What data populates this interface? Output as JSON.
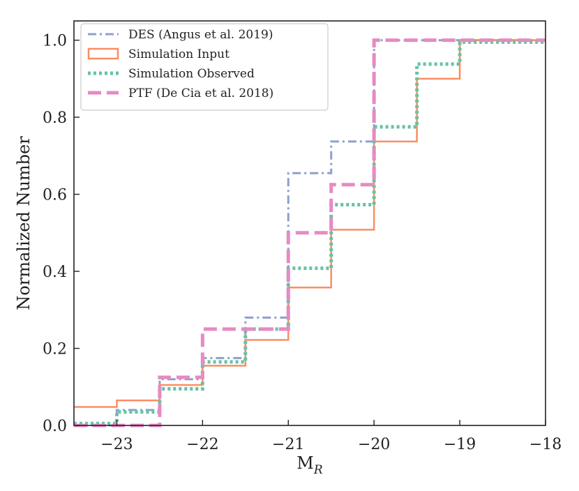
{
  "chart_data": {
    "type": "line",
    "step": "post",
    "title": "",
    "xlabel": "M",
    "xlabel_subscript": "R",
    "ylabel": "Normalized Number",
    "xlim": [
      -23.5,
      -18
    ],
    "ylim": [
      0,
      1.05
    ],
    "xticks": [
      -23,
      -22,
      -21,
      -20,
      -19,
      -18
    ],
    "xtick_labels": [
      "−23",
      "−22",
      "−21",
      "−20",
      "−19",
      "−18"
    ],
    "yticks": [
      0.0,
      0.2,
      0.4,
      0.6,
      0.8,
      1.0
    ],
    "ytick_labels": [
      "0.0",
      "0.2",
      "0.4",
      "0.6",
      "0.8",
      "1.0"
    ],
    "grid": false,
    "legend_location": "upper-left",
    "series": [
      {
        "name": "DES (Angus et al. 2019)",
        "color": "#8DA0CB",
        "style": "dashdot",
        "x": [
          -23.5,
          -23.0,
          -22.5,
          -22.0,
          -21.5,
          -21.0,
          -20.5,
          -20.0,
          -19.5,
          -19.0,
          -18.0
        ],
        "y": [
          0.0,
          0.04,
          0.12,
          0.175,
          0.28,
          0.655,
          0.737,
          1.0,
          1.0,
          1.0,
          1.0
        ]
      },
      {
        "name": "Simulation Input",
        "color": "#FC8D62",
        "style": "solid",
        "x": [
          -23.5,
          -23.0,
          -22.5,
          -22.0,
          -21.5,
          -21.0,
          -20.5,
          -20.0,
          -19.5,
          -19.0,
          -18.0
        ],
        "y": [
          0.048,
          0.065,
          0.105,
          0.155,
          0.222,
          0.358,
          0.508,
          0.737,
          0.9,
          1.0,
          1.0
        ]
      },
      {
        "name": "Simulation Observed",
        "color": "#66C2A5",
        "style": "dotted",
        "x": [
          -23.5,
          -23.0,
          -22.5,
          -22.0,
          -21.5,
          -21.0,
          -20.5,
          -20.0,
          -19.5,
          -19.0,
          -18.0
        ],
        "y": [
          0.005,
          0.035,
          0.095,
          0.165,
          0.25,
          0.408,
          0.573,
          0.775,
          0.938,
          0.995,
          1.0
        ]
      },
      {
        "name": "PTF (De Cia et al. 2018)",
        "color": "#E78AC3",
        "style": "dashed",
        "x": [
          -23.5,
          -23.0,
          -22.5,
          -22.0,
          -21.5,
          -21.0,
          -20.5,
          -20.0,
          -19.5,
          -19.0,
          -18.0
        ],
        "y": [
          0.0,
          0.0,
          0.125,
          0.25,
          0.25,
          0.5,
          0.625,
          1.0,
          1.0,
          1.0,
          1.0
        ]
      }
    ]
  }
}
